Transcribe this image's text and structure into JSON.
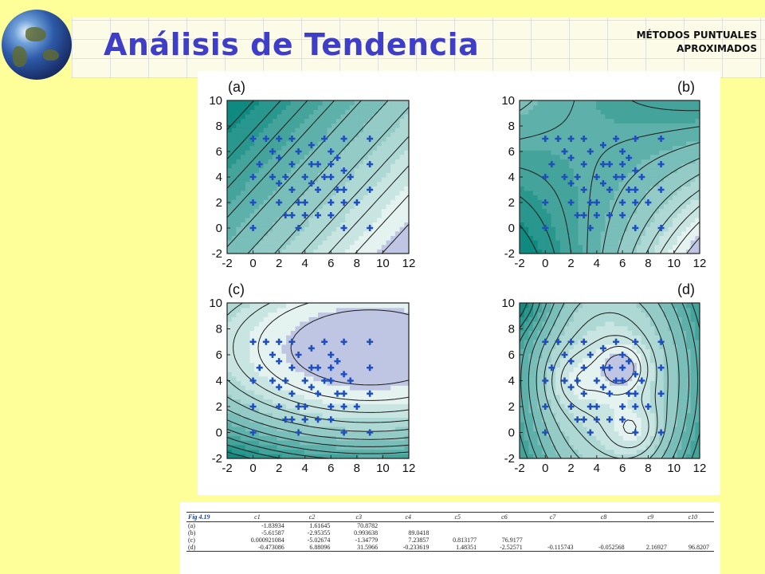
{
  "header": {
    "title": "Análisis de Tendencia",
    "subtitle_line1": "MÉTODOS PUNTUALES",
    "subtitle_line2": "APROXIMADOS"
  },
  "figure": {
    "panels": [
      {
        "label": "(a)",
        "type": "linear"
      },
      {
        "label": "(b)",
        "type": "saddle"
      },
      {
        "label": "(c)",
        "type": "parabolic"
      },
      {
        "label": "(d)",
        "type": "bumpy"
      }
    ],
    "axis": {
      "x_ticks": [
        "-2",
        "0",
        "2",
        "4",
        "6",
        "8",
        "10",
        "12"
      ],
      "y_ticks": [
        "-2",
        "0",
        "2",
        "4",
        "6",
        "8",
        "10"
      ]
    },
    "sample_points": [
      [
        0,
        7
      ],
      [
        0,
        4
      ],
      [
        0,
        2
      ],
      [
        0,
        0
      ],
      [
        0.5,
        5
      ],
      [
        1,
        7
      ],
      [
        1.5,
        6
      ],
      [
        1.5,
        4
      ],
      [
        2,
        7
      ],
      [
        2,
        5.5
      ],
      [
        2,
        3.5
      ],
      [
        2,
        2
      ],
      [
        2.5,
        4
      ],
      [
        2.5,
        1
      ],
      [
        3,
        7
      ],
      [
        3,
        5
      ],
      [
        3,
        3
      ],
      [
        3,
        1
      ],
      [
        3.5,
        6
      ],
      [
        3.5,
        2
      ],
      [
        3.5,
        0
      ],
      [
        4,
        4
      ],
      [
        4,
        2
      ],
      [
        4,
        1
      ],
      [
        4.5,
        6.5
      ],
      [
        4.5,
        5
      ],
      [
        4.5,
        3.5
      ],
      [
        5,
        5
      ],
      [
        5,
        3
      ],
      [
        5,
        1
      ],
      [
        5.5,
        7
      ],
      [
        5.5,
        4
      ],
      [
        6,
        6
      ],
      [
        6,
        5
      ],
      [
        6,
        4
      ],
      [
        6,
        2
      ],
      [
        6,
        1
      ],
      [
        6.5,
        5.5
      ],
      [
        6.5,
        3
      ],
      [
        7,
        7
      ],
      [
        7,
        4.5
      ],
      [
        7,
        3
      ],
      [
        7,
        2
      ],
      [
        7,
        0
      ],
      [
        7.5,
        4
      ],
      [
        8,
        2
      ],
      [
        9,
        7
      ],
      [
        9,
        5
      ],
      [
        9,
        3
      ],
      [
        9,
        0
      ]
    ],
    "colors": {
      "point": "#1f4fbf",
      "dark": "#0e8a80",
      "light": "#e4f2f0",
      "violet": "#9a9ad8"
    }
  },
  "table": {
    "caption": "Fig 4.19",
    "columns": [
      "c1",
      "c2",
      "c3",
      "c4",
      "c5",
      "c6",
      "c7",
      "c8",
      "c9",
      "c10"
    ],
    "rows": [
      {
        "label": "(a)",
        "values": [
          "-1.83934",
          "1.61645",
          "70.8782",
          "",
          "",
          "",
          "",
          "",
          "",
          ""
        ]
      },
      {
        "label": "(b)",
        "values": [
          "-5.61587",
          "-2.95355",
          "0.993638",
          "89.0418",
          "",
          "",
          "",
          "",
          "",
          ""
        ]
      },
      {
        "label": "(c)",
        "values": [
          "0.000921084",
          "-5.02674",
          "-1.34779",
          "7.23857",
          "0.813177",
          "76.9177",
          "",
          "",
          "",
          ""
        ]
      },
      {
        "label": "(d)",
        "values": [
          "-0.473086",
          "6.88096",
          "31.5966",
          "-0.233619",
          "1.48351",
          "-2.52571",
          "-0.115743",
          "-0.052568",
          "2.16927",
          "96.8207"
        ]
      }
    ]
  }
}
